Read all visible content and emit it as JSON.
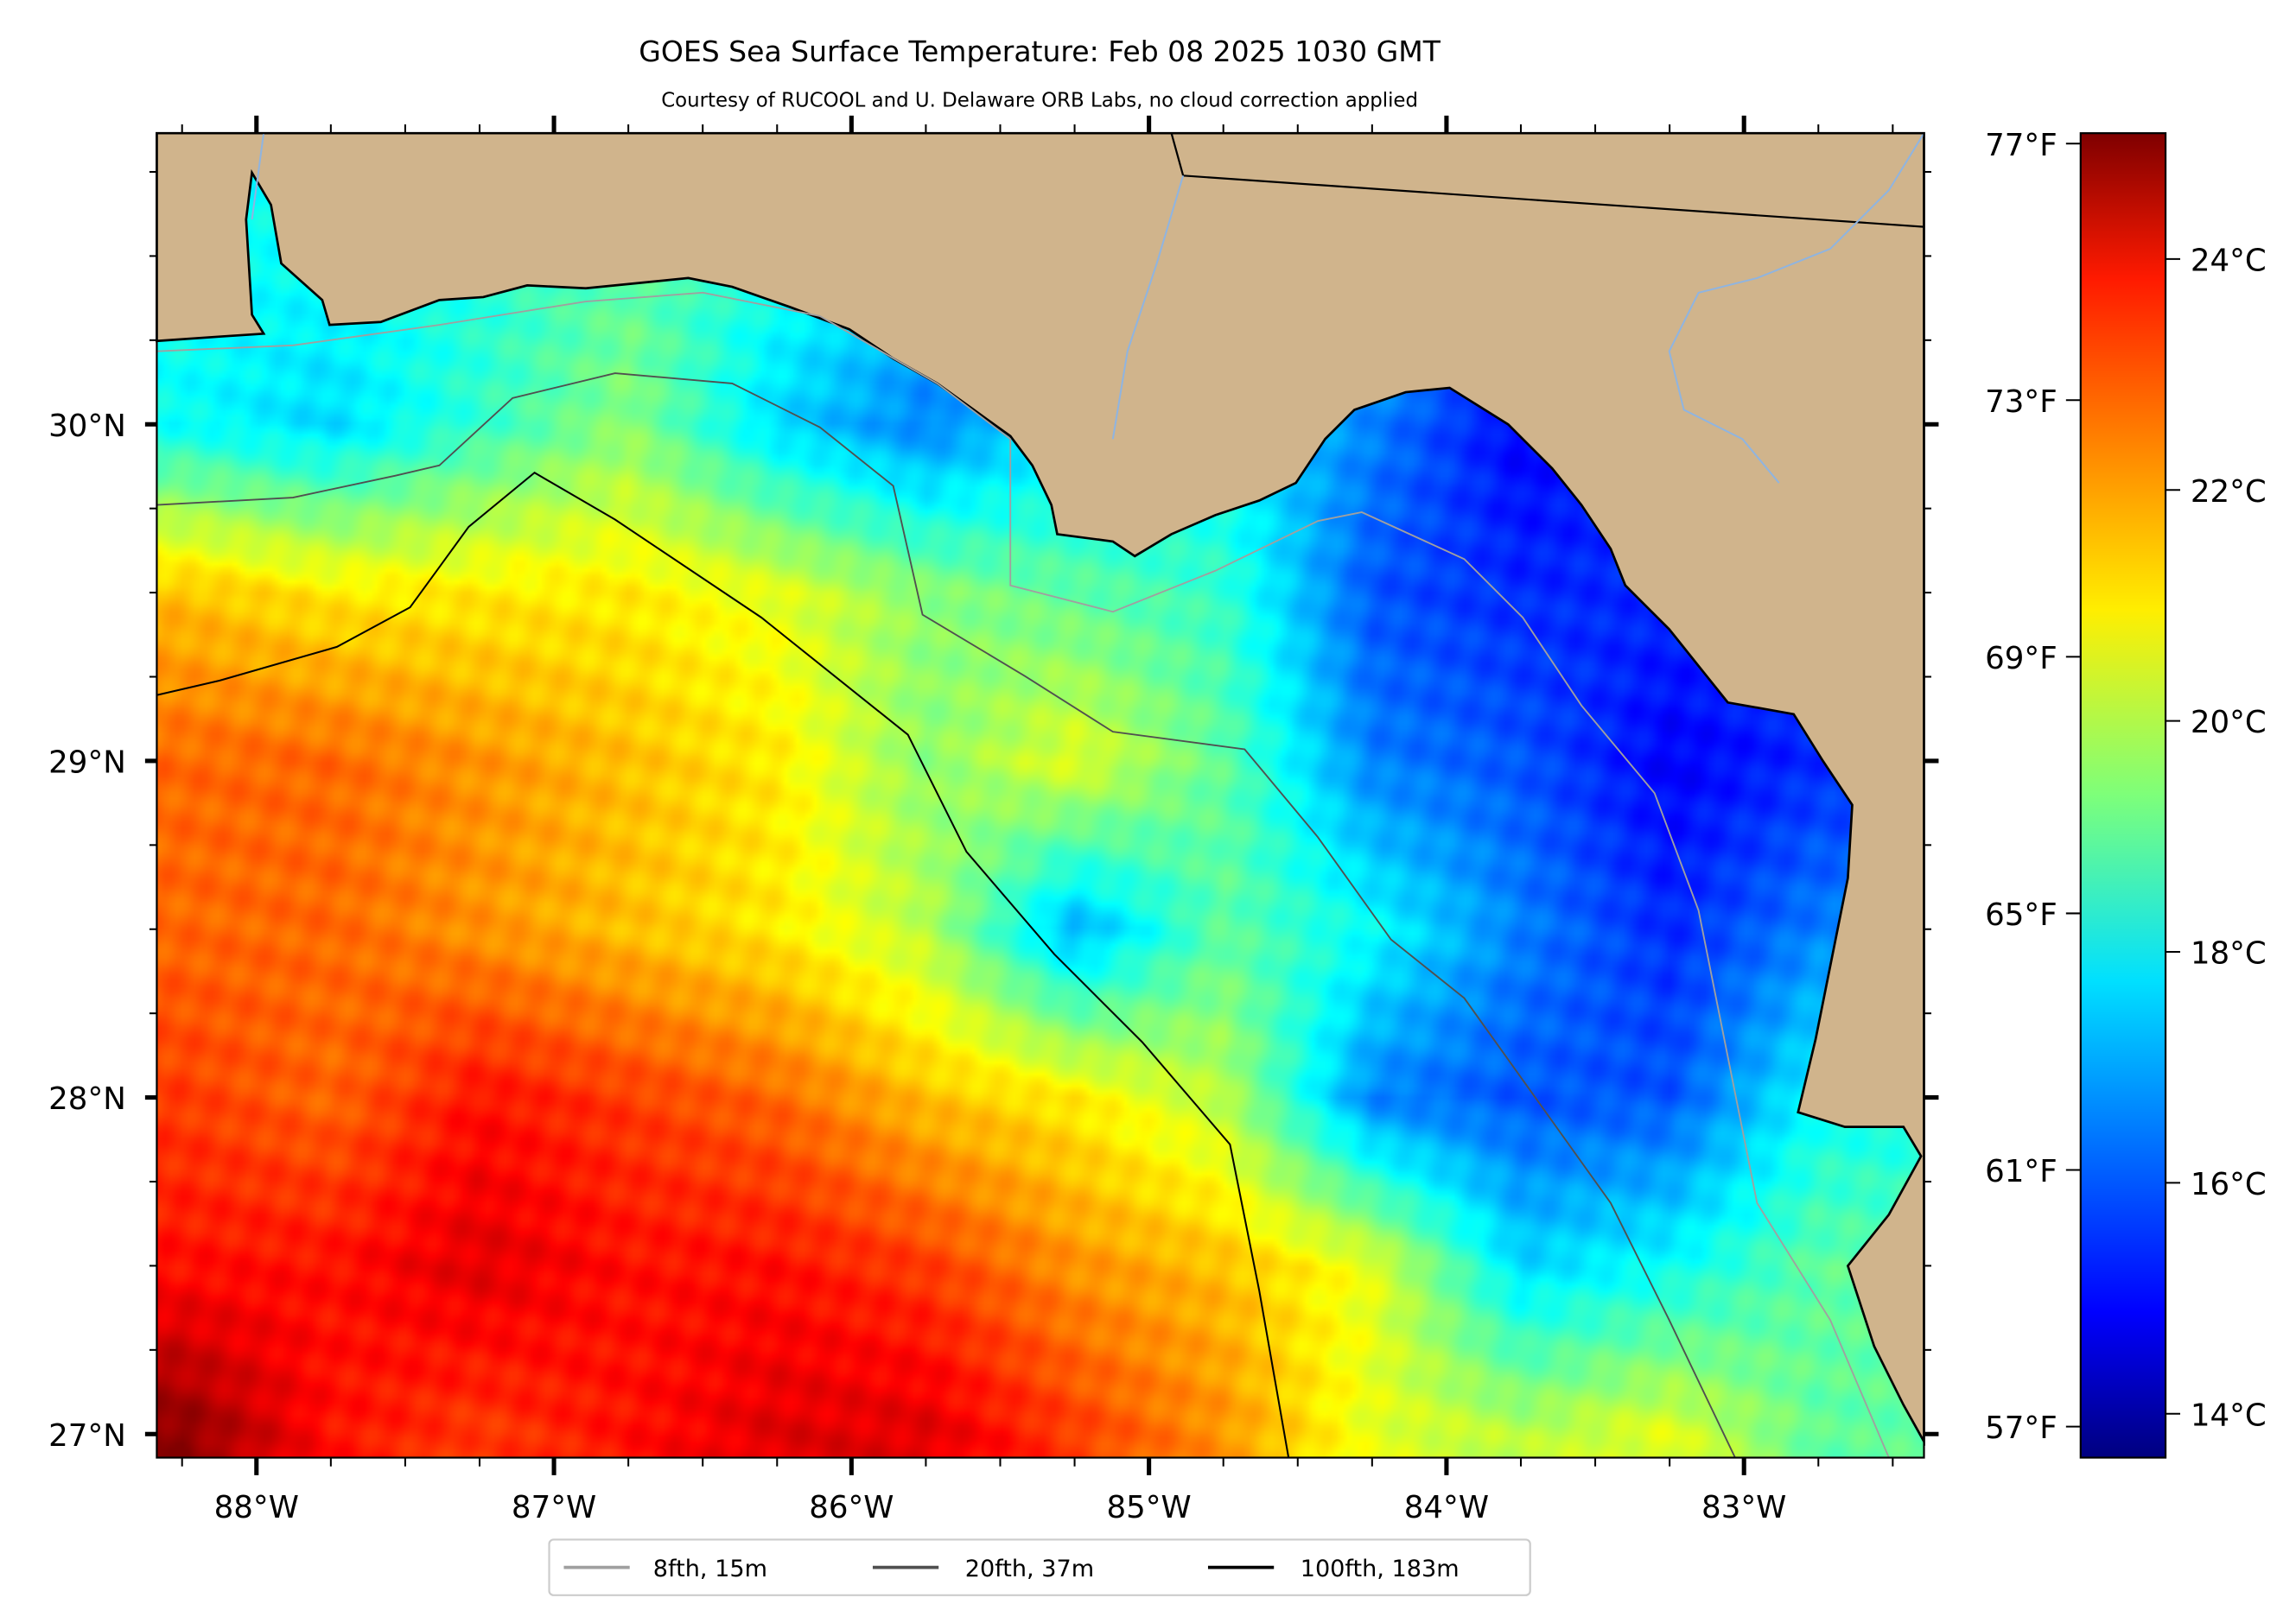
{
  "chart_data": {
    "type": "heatmap",
    "title": "GOES Sea Surface Temperature: Feb 08 2025 1030 GMT",
    "subtitle": "Courtesy of RUCOOL and U. Delaware ORB Labs, no cloud correction applied",
    "xlim": [
      -88.335,
      -82.395
    ],
    "ylim": [
      26.93,
      30.865
    ],
    "x_ticks": [
      -88,
      -87,
      -86,
      -85,
      -84,
      -83
    ],
    "x_tick_labels": [
      "88°W",
      "87°W",
      "86°W",
      "85°W",
      "84°W",
      "83°W"
    ],
    "y_ticks": [
      27,
      28,
      29,
      30
    ],
    "y_tick_labels": [
      "27°N",
      "28°N",
      "29°N",
      "30°N"
    ],
    "grid": false,
    "colormap": "jet",
    "color_range_c": [
      13.62,
      25.09
    ],
    "colorbar_c_ticks": [
      14,
      16,
      18,
      20,
      22,
      24
    ],
    "colorbar_c_labels": [
      "14°C",
      "16°C",
      "18°C",
      "20°C",
      "22°C",
      "24°C"
    ],
    "colorbar_f_ticks": [
      57,
      61,
      65,
      69,
      73,
      77
    ],
    "colorbar_f_labels": [
      "57°F",
      "61°F",
      "65°F",
      "69°F",
      "73°F",
      "77°F"
    ],
    "sst_grid": {
      "units": "°C",
      "lons": [
        -88.25,
        -87.75,
        -87.25,
        -86.75,
        -86.25,
        -85.75,
        -85.25,
        -84.75,
        -84.25,
        -83.75,
        -83.25,
        -82.75
      ],
      "lats": [
        30.5,
        30.0,
        29.5,
        29.0,
        28.5,
        28.0,
        27.5,
        27.0
      ],
      "values": [
        [
          18,
          18,
          null,
          null,
          null,
          null,
          null,
          null,
          null,
          null,
          null,
          null
        ],
        [
          18,
          17.5,
          18.5,
          19.5,
          17.5,
          16.5,
          null,
          null,
          null,
          15,
          null,
          null
        ],
        [
          21.5,
          21,
          21,
          21,
          20.5,
          19.5,
          19,
          18.5,
          16,
          15.5,
          15.5,
          null
        ],
        [
          22.5,
          22.5,
          22,
          21.5,
          21,
          19.5,
          20.5,
          19,
          16.5,
          16,
          15,
          15.5
        ],
        [
          22.5,
          22.5,
          22,
          21.5,
          21,
          20,
          17,
          19,
          18,
          16.5,
          15.5,
          16.5
        ],
        [
          23,
          22.5,
          23.5,
          23,
          22.5,
          21.5,
          21,
          20,
          16.5,
          16,
          16,
          18
        ],
        [
          23.5,
          23.5,
          24,
          23.5,
          23.5,
          23,
          22,
          21.5,
          20.5,
          17.5,
          18,
          19
        ],
        [
          25,
          23.5,
          23,
          23.5,
          24,
          24,
          23,
          22,
          20.5,
          20,
          20.5,
          19
        ]
      ]
    },
    "legend": {
      "placement": "bottom-center",
      "entries": [
        {
          "label": "8fth, 15m",
          "color": "#a0a0a0"
        },
        {
          "label": "20fth, 37m",
          "color": "#505050"
        },
        {
          "label": "100fth, 183m",
          "color": "#000000"
        }
      ]
    },
    "colors": {
      "land": "#d0b48c",
      "river": "#8fb4e0"
    }
  }
}
